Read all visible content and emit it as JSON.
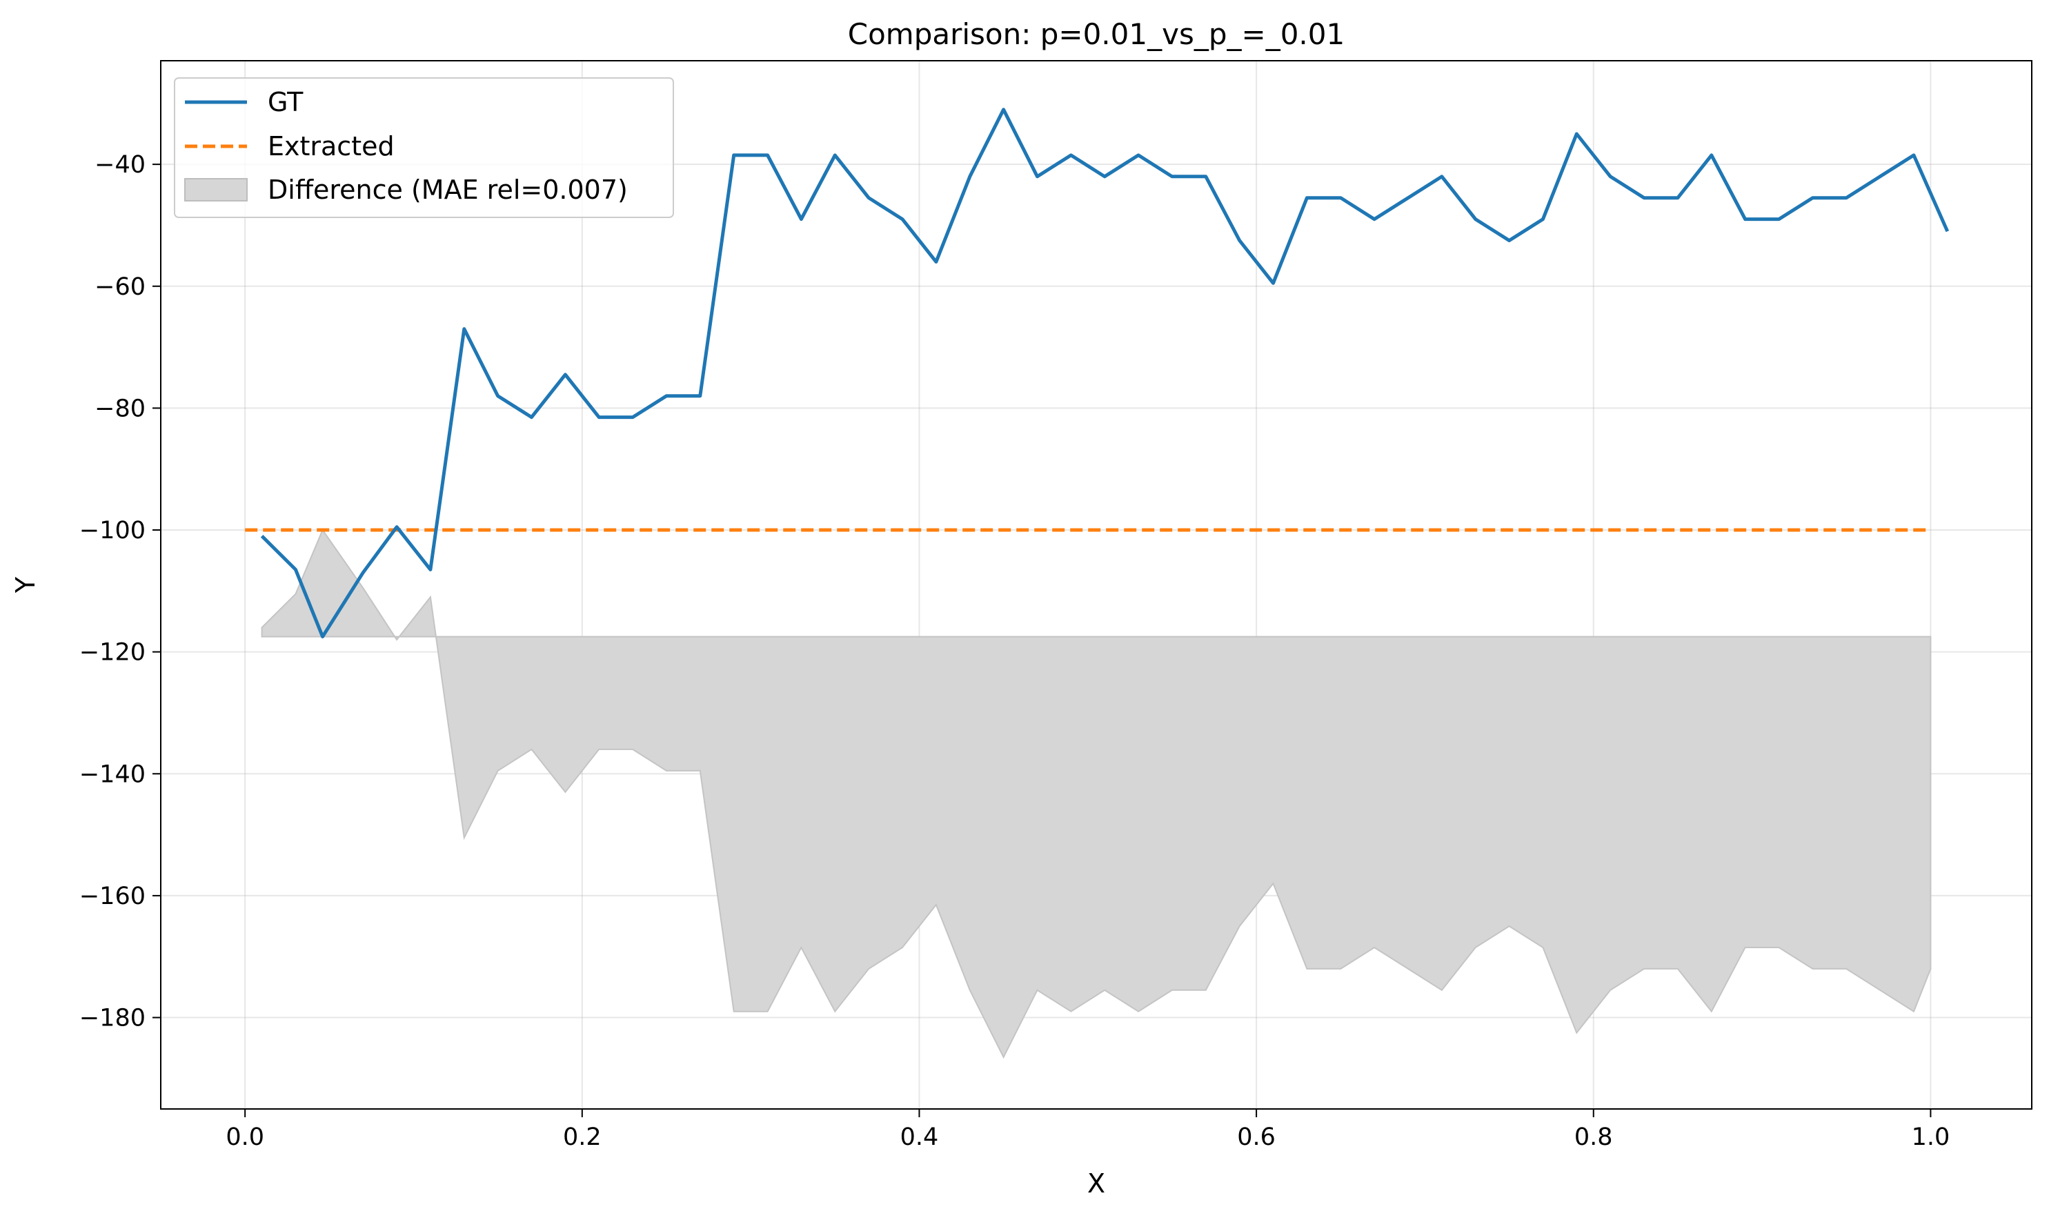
{
  "chart_data": {
    "type": "line",
    "title": "Comparison: p=0.01_vs_p_=_0.01",
    "xlabel": "X",
    "ylabel": "Y",
    "xlim": [
      -0.05,
      1.06
    ],
    "ylim": [
      -195,
      -23
    ],
    "x_ticks": [
      0.0,
      0.2,
      0.4,
      0.6,
      0.8,
      1.0
    ],
    "x_tick_labels": [
      "0.0",
      "0.2",
      "0.4",
      "0.6",
      "0.8",
      "1.0"
    ],
    "y_ticks": [
      -40,
      -60,
      -80,
      -100,
      -120,
      -140,
      -160,
      -180
    ],
    "y_tick_labels": [
      "−40",
      "−60",
      "−80",
      "−100",
      "−120",
      "−140",
      "−160",
      "−180"
    ],
    "grid": true,
    "legend_position": "top-left",
    "series": [
      {
        "name": "GT",
        "color": "#1f77b4",
        "style": "solid",
        "x": [
          0.01,
          0.03,
          0.046,
          0.07,
          0.09,
          0.11,
          0.13,
          0.15,
          0.17,
          0.19,
          0.21,
          0.23,
          0.25,
          0.27,
          0.29,
          0.31,
          0.33,
          0.35,
          0.37,
          0.39,
          0.41,
          0.43,
          0.45,
          0.47,
          0.49,
          0.51,
          0.53,
          0.55,
          0.57,
          0.59,
          0.61,
          0.63,
          0.65,
          0.67,
          0.69,
          0.71,
          0.73,
          0.75,
          0.77,
          0.79,
          0.81,
          0.83,
          0.85,
          0.87,
          0.89,
          0.91,
          0.93,
          0.95,
          0.97,
          0.99,
          1.01
        ],
        "y": [
          -101,
          -106.5,
          -117.5,
          -107,
          -99.5,
          -106.5,
          -67,
          -78,
          -81.5,
          -74.5,
          -81.5,
          -81.5,
          -78,
          -78,
          -38.5,
          -38.5,
          -49,
          -38.5,
          -45.5,
          -49,
          -56,
          -42,
          -31,
          -42,
          -38.5,
          -42,
          -38.5,
          -42,
          -42,
          -52.5,
          -59.5,
          -45.5,
          -45.5,
          -49,
          -45.5,
          -42,
          -49,
          -52.5,
          -49,
          -35,
          -42,
          -45.5,
          -45.5,
          -38.5,
          -49,
          -49,
          -45.5,
          -45.5,
          -42,
          -38.5,
          -51
        ]
      },
      {
        "name": "Extracted",
        "color": "#ff7f0e",
        "style": "dashed",
        "x": [
          0.0,
          1.0
        ],
        "y": [
          -100,
          -100
        ]
      }
    ],
    "difference": {
      "name": "Difference (MAE rel=0.007)",
      "color": "#d6d6d6",
      "baseline": -117.5,
      "x": [
        0.01,
        0.03,
        0.046,
        0.07,
        0.09,
        0.11,
        0.13,
        0.15,
        0.17,
        0.19,
        0.21,
        0.23,
        0.25,
        0.27,
        0.29,
        0.31,
        0.33,
        0.35,
        0.37,
        0.39,
        0.41,
        0.43,
        0.45,
        0.47,
        0.49,
        0.51,
        0.53,
        0.55,
        0.57,
        0.59,
        0.61,
        0.63,
        0.65,
        0.67,
        0.69,
        0.71,
        0.73,
        0.75,
        0.77,
        0.79,
        0.81,
        0.83,
        0.85,
        0.87,
        0.89,
        0.91,
        0.93,
        0.95,
        0.97,
        0.99,
        1.0
      ],
      "y": [
        -116,
        -110.5,
        -100,
        -109.5,
        -118,
        -111,
        -150.5,
        -139.5,
        -136,
        -143,
        -136,
        -136,
        -139.5,
        -139.5,
        -179,
        -179,
        -168.5,
        -179,
        -172,
        -168.5,
        -161.5,
        -175.5,
        -186.5,
        -175.5,
        -179,
        -175.5,
        -179,
        -175.5,
        -175.5,
        -165,
        -158,
        -172,
        -172,
        -168.5,
        -172,
        -175.5,
        -168.5,
        -165,
        -168.5,
        -182.5,
        -175.5,
        -172,
        -172,
        -179,
        -168.5,
        -168.5,
        -172,
        -172,
        -175.5,
        -179,
        -172
      ]
    }
  }
}
